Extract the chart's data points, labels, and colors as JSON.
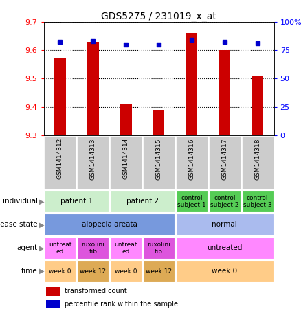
{
  "title": "GDS5275 / 231019_x_at",
  "samples": [
    "GSM1414312",
    "GSM1414313",
    "GSM1414314",
    "GSM1414315",
    "GSM1414316",
    "GSM1414317",
    "GSM1414318"
  ],
  "transformed_counts": [
    9.57,
    9.63,
    9.41,
    9.39,
    9.66,
    9.6,
    9.51
  ],
  "percentile_ranks": [
    82,
    83,
    80,
    80,
    84,
    82,
    81
  ],
  "ylim_left": [
    9.3,
    9.7
  ],
  "ylim_right": [
    0,
    100
  ],
  "yticks_left": [
    9.3,
    9.4,
    9.5,
    9.6,
    9.7
  ],
  "yticks_right": [
    0,
    25,
    50,
    75,
    100
  ],
  "bar_color": "#cc0000",
  "dot_color": "#0000cc",
  "annotation_rows": [
    {
      "label": "individual",
      "cells": [
        {
          "text": "patient 1",
          "span": [
            0,
            2
          ],
          "color": "#cceecc"
        },
        {
          "text": "patient 2",
          "span": [
            2,
            4
          ],
          "color": "#cceecc"
        },
        {
          "text": "control\nsubject 1",
          "span": [
            4,
            5
          ],
          "color": "#55cc55"
        },
        {
          "text": "control\nsubject 2",
          "span": [
            5,
            6
          ],
          "color": "#55cc55"
        },
        {
          "text": "control\nsubject 3",
          "span": [
            6,
            7
          ],
          "color": "#55cc55"
        }
      ]
    },
    {
      "label": "disease state",
      "cells": [
        {
          "text": "alopecia areata",
          "span": [
            0,
            4
          ],
          "color": "#7799dd"
        },
        {
          "text": "normal",
          "span": [
            4,
            7
          ],
          "color": "#aabbee"
        }
      ]
    },
    {
      "label": "agent",
      "cells": [
        {
          "text": "untreat\ned",
          "span": [
            0,
            1
          ],
          "color": "#ff88ff"
        },
        {
          "text": "ruxolini\ntib",
          "span": [
            1,
            2
          ],
          "color": "#dd55dd"
        },
        {
          "text": "untreat\ned",
          "span": [
            2,
            3
          ],
          "color": "#ff88ff"
        },
        {
          "text": "ruxolini\ntib",
          "span": [
            3,
            4
          ],
          "color": "#dd55dd"
        },
        {
          "text": "untreated",
          "span": [
            4,
            7
          ],
          "color": "#ff88ff"
        }
      ]
    },
    {
      "label": "time",
      "cells": [
        {
          "text": "week 0",
          "span": [
            0,
            1
          ],
          "color": "#ffcc88"
        },
        {
          "text": "week 12",
          "span": [
            1,
            2
          ],
          "color": "#ddaa55"
        },
        {
          "text": "week 0",
          "span": [
            2,
            3
          ],
          "color": "#ffcc88"
        },
        {
          "text": "week 12",
          "span": [
            3,
            4
          ],
          "color": "#ddaa55"
        },
        {
          "text": "week 0",
          "span": [
            4,
            7
          ],
          "color": "#ffcc88"
        }
      ]
    }
  ]
}
